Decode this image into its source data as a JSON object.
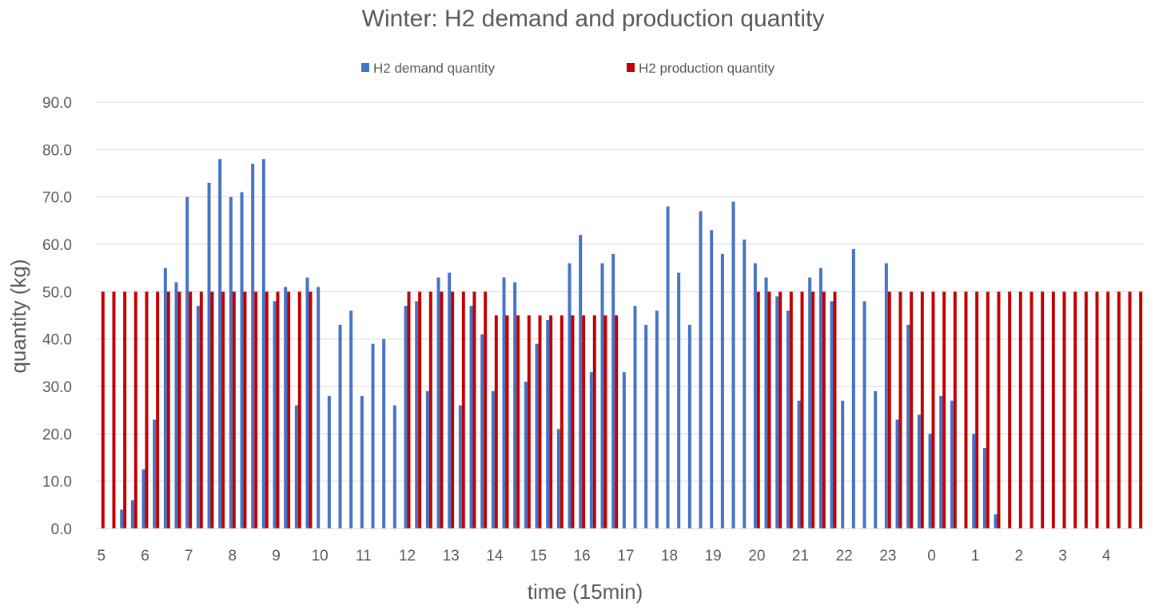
{
  "chart_data": {
    "type": "bar",
    "title": "Winter: H2 demand and production quantity",
    "xlabel": "time (15min)",
    "ylabel": "quantity (kg)",
    "ylim": [
      0,
      90
    ],
    "yticks": [
      "0.0",
      "10.0",
      "20.0",
      "30.0",
      "40.0",
      "50.0",
      "60.0",
      "70.0",
      "80.0",
      "90.0"
    ],
    "grid": true,
    "legend_position": "top",
    "x_tick_labels": [
      "5",
      "6",
      "7",
      "8",
      "9",
      "10",
      "11",
      "12",
      "13",
      "14",
      "15",
      "16",
      "17",
      "18",
      "19",
      "20",
      "21",
      "22",
      "23",
      "0",
      "1",
      "2",
      "3",
      "4"
    ],
    "categories": [
      "5",
      "5:15",
      "5:30",
      "5:45",
      "6",
      "6:15",
      "6:30",
      "6:45",
      "7",
      "7:15",
      "7:30",
      "7:45",
      "8",
      "8:15",
      "8:30",
      "8:45",
      "9",
      "9:15",
      "9:30",
      "9:45",
      "10",
      "10:15",
      "10:30",
      "10:45",
      "11",
      "11:15",
      "11:30",
      "11:45",
      "12",
      "12:15",
      "12:30",
      "12:45",
      "13",
      "13:15",
      "13:30",
      "13:45",
      "14",
      "14:15",
      "14:30",
      "14:45",
      "15",
      "15:15",
      "15:30",
      "15:45",
      "16",
      "16:15",
      "16:30",
      "16:45",
      "17",
      "17:15",
      "17:30",
      "17:45",
      "18",
      "18:15",
      "18:30",
      "18:45",
      "19",
      "19:15",
      "19:30",
      "19:45",
      "20",
      "20:15",
      "20:30",
      "20:45",
      "21",
      "21:15",
      "21:30",
      "21:45",
      "22",
      "22:15",
      "22:30",
      "22:45",
      "23",
      "23:15",
      "23:30",
      "23:45",
      "0",
      "0:15",
      "0:30",
      "0:45",
      "1",
      "1:15",
      "1:30",
      "1:45",
      "2",
      "2:15",
      "2:30",
      "2:45",
      "3",
      "3:15",
      "3:30",
      "3:45",
      "4",
      "4:15",
      "4:30",
      "4:45"
    ],
    "series": [
      {
        "name": "H2 demand quantity",
        "color": "#4472C4",
        "values": [
          0,
          0,
          4,
          6,
          12.5,
          23,
          55,
          52,
          70,
          47,
          73,
          78,
          70,
          71,
          77,
          78,
          48,
          51,
          26,
          53,
          51,
          28,
          43,
          46,
          28,
          39,
          40,
          26,
          47,
          48,
          29,
          53,
          54,
          26,
          47,
          41,
          29,
          53,
          52,
          31,
          39,
          44,
          21,
          56,
          62,
          33,
          56,
          58,
          33,
          47,
          43,
          46,
          68,
          54,
          43,
          67,
          63,
          58,
          69,
          61,
          56,
          53,
          49,
          46,
          27,
          53,
          55,
          48,
          27,
          59,
          48,
          29,
          56,
          23,
          43,
          24,
          20,
          28,
          27,
          0,
          20,
          17,
          3,
          0,
          0,
          0,
          0,
          0,
          0,
          0,
          0,
          0,
          0,
          0,
          0,
          0
        ]
      },
      {
        "name": "H2 production quantity",
        "color": "#C00000",
        "values": [
          50,
          50,
          50,
          50,
          50,
          50,
          50,
          50,
          50,
          50,
          50,
          50,
          50,
          50,
          50,
          50,
          50,
          50,
          50,
          50,
          0,
          0,
          0,
          0,
          0,
          0,
          0,
          0,
          50,
          50,
          50,
          50,
          50,
          50,
          50,
          50,
          45,
          45,
          45,
          45,
          45,
          45,
          45,
          45,
          45,
          45,
          45,
          45,
          0,
          0,
          0,
          0,
          0,
          0,
          0,
          0,
          0,
          0,
          0,
          0,
          50,
          50,
          50,
          50,
          50,
          50,
          50,
          50,
          0,
          0,
          0,
          0,
          50,
          50,
          50,
          50,
          50,
          50,
          50,
          50,
          50,
          50,
          50,
          50,
          50,
          50,
          50,
          50,
          50,
          50,
          50,
          50,
          50,
          50,
          50,
          50
        ]
      }
    ]
  }
}
